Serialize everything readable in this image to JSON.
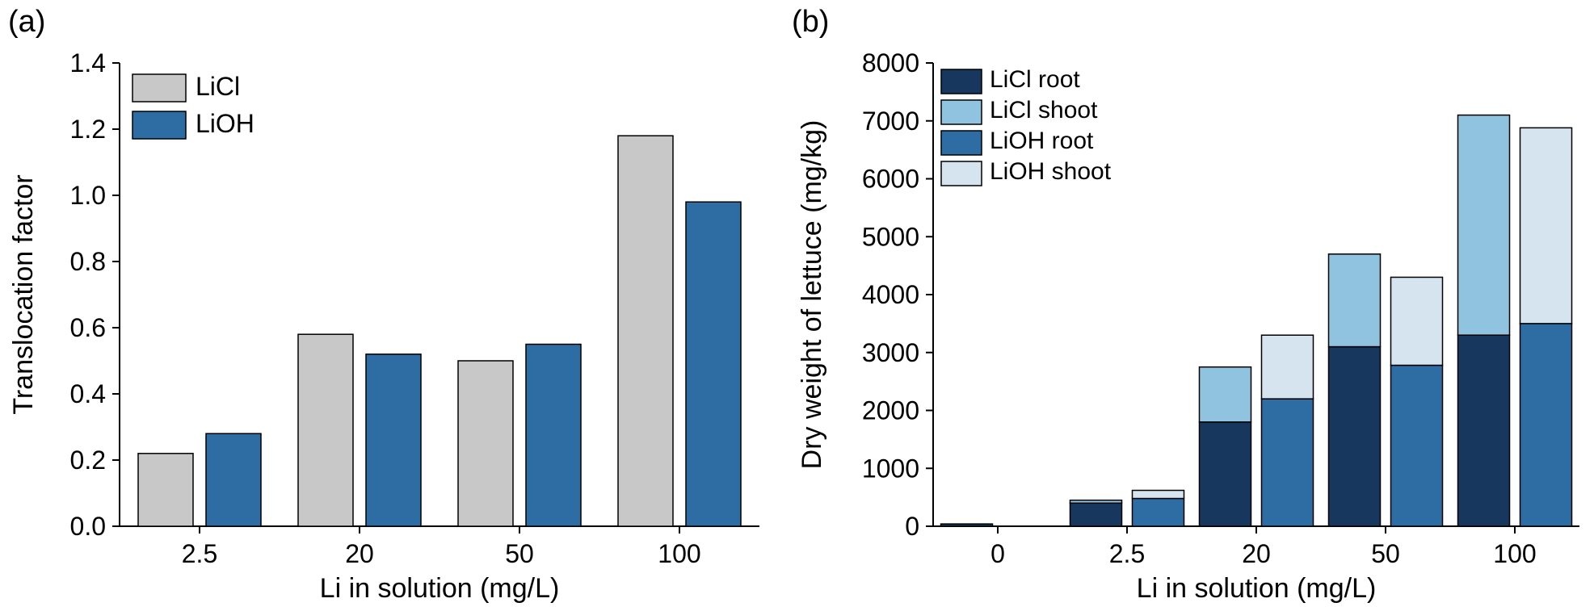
{
  "chart_data": [
    {
      "id": "a",
      "type": "bar",
      "panel_label": "(a)",
      "categories": [
        "2.5",
        "20",
        "50",
        "100"
      ],
      "series": [
        {
          "name": "LiCl",
          "color": "#c8c8c8",
          "values": [
            0.22,
            0.58,
            0.5,
            1.18
          ]
        },
        {
          "name": "LiOH",
          "color": "#2e6da4",
          "values": [
            0.28,
            0.52,
            0.55,
            0.98
          ]
        }
      ],
      "xlabel": "Li in solution (mg/L)",
      "ylabel": "Translocation factor",
      "ylim": [
        0,
        1.4
      ],
      "ytick_labels": [
        "0.0",
        "0.2",
        "0.4",
        "0.6",
        "0.8",
        "1.0",
        "1.2",
        "1.4"
      ],
      "grid": false,
      "bar_stroke": "#000000",
      "legend": {
        "position": "top-left",
        "entries": [
          "LiCl",
          "LiOH"
        ]
      }
    },
    {
      "id": "b",
      "type": "stacked-bar",
      "panel_label": "(b)",
      "categories": [
        "0",
        "2.5",
        "20",
        "50",
        "100"
      ],
      "groups": [
        {
          "name": "LiCl",
          "stacks": [
            {
              "name": "LiCl root",
              "color": "#17375e",
              "values": [
                40,
                400,
                1800,
                3100,
                3300
              ]
            },
            {
              "name": "LiCl shoot",
              "color": "#8fc3df",
              "values": [
                0,
                50,
                950,
                1600,
                3800
              ]
            }
          ]
        },
        {
          "name": "LiOH",
          "stacks": [
            {
              "name": "LiOH root",
              "color": "#2e6da4",
              "values": [
                0,
                480,
                2200,
                2780,
                3500
              ]
            },
            {
              "name": "LiOH shoot",
              "color": "#d6e4f0",
              "values": [
                0,
                140,
                1100,
                1520,
                3380
              ]
            }
          ]
        }
      ],
      "xlabel": "Li in solution (mg/L)",
      "ylabel": "Dry weight of lettuce (mg/kg)",
      "ylim": [
        0,
        8000
      ],
      "ytick_labels": [
        "0",
        "1000",
        "2000",
        "3000",
        "4000",
        "5000",
        "6000",
        "7000",
        "8000"
      ],
      "grid": false,
      "bar_stroke": "#000000",
      "legend": {
        "position": "top-left",
        "entries": [
          "LiCl root",
          "LiCl shoot",
          "LiOH root",
          "LiOH shoot"
        ]
      }
    }
  ]
}
